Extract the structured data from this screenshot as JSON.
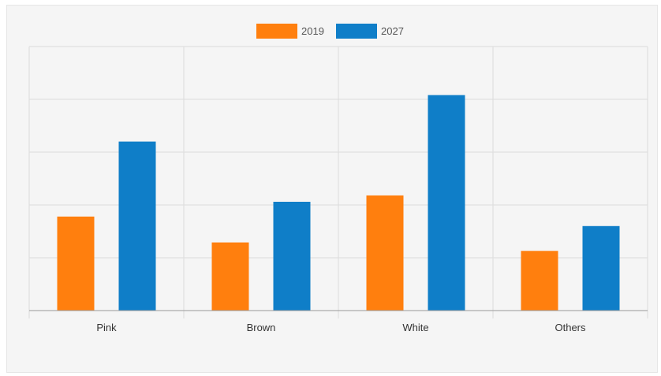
{
  "chart_data": {
    "type": "bar",
    "title": "",
    "xlabel": "",
    "ylabel": "",
    "categories": [
      "Pink",
      "Brown",
      "White",
      "Others"
    ],
    "series": [
      {
        "name": "2019",
        "color": "#ff7f0e",
        "values": [
          1.78,
          1.29,
          2.18,
          1.13
        ]
      },
      {
        "name": "2027",
        "color": "#0f7ec8",
        "values": [
          3.2,
          2.06,
          4.08,
          1.6
        ]
      }
    ],
    "ylim": [
      0,
      5
    ],
    "y_ticks": [
      0,
      1,
      2,
      3,
      4,
      5
    ],
    "y_tick_labels_visible": false,
    "grid": true,
    "legend": "top-center"
  }
}
